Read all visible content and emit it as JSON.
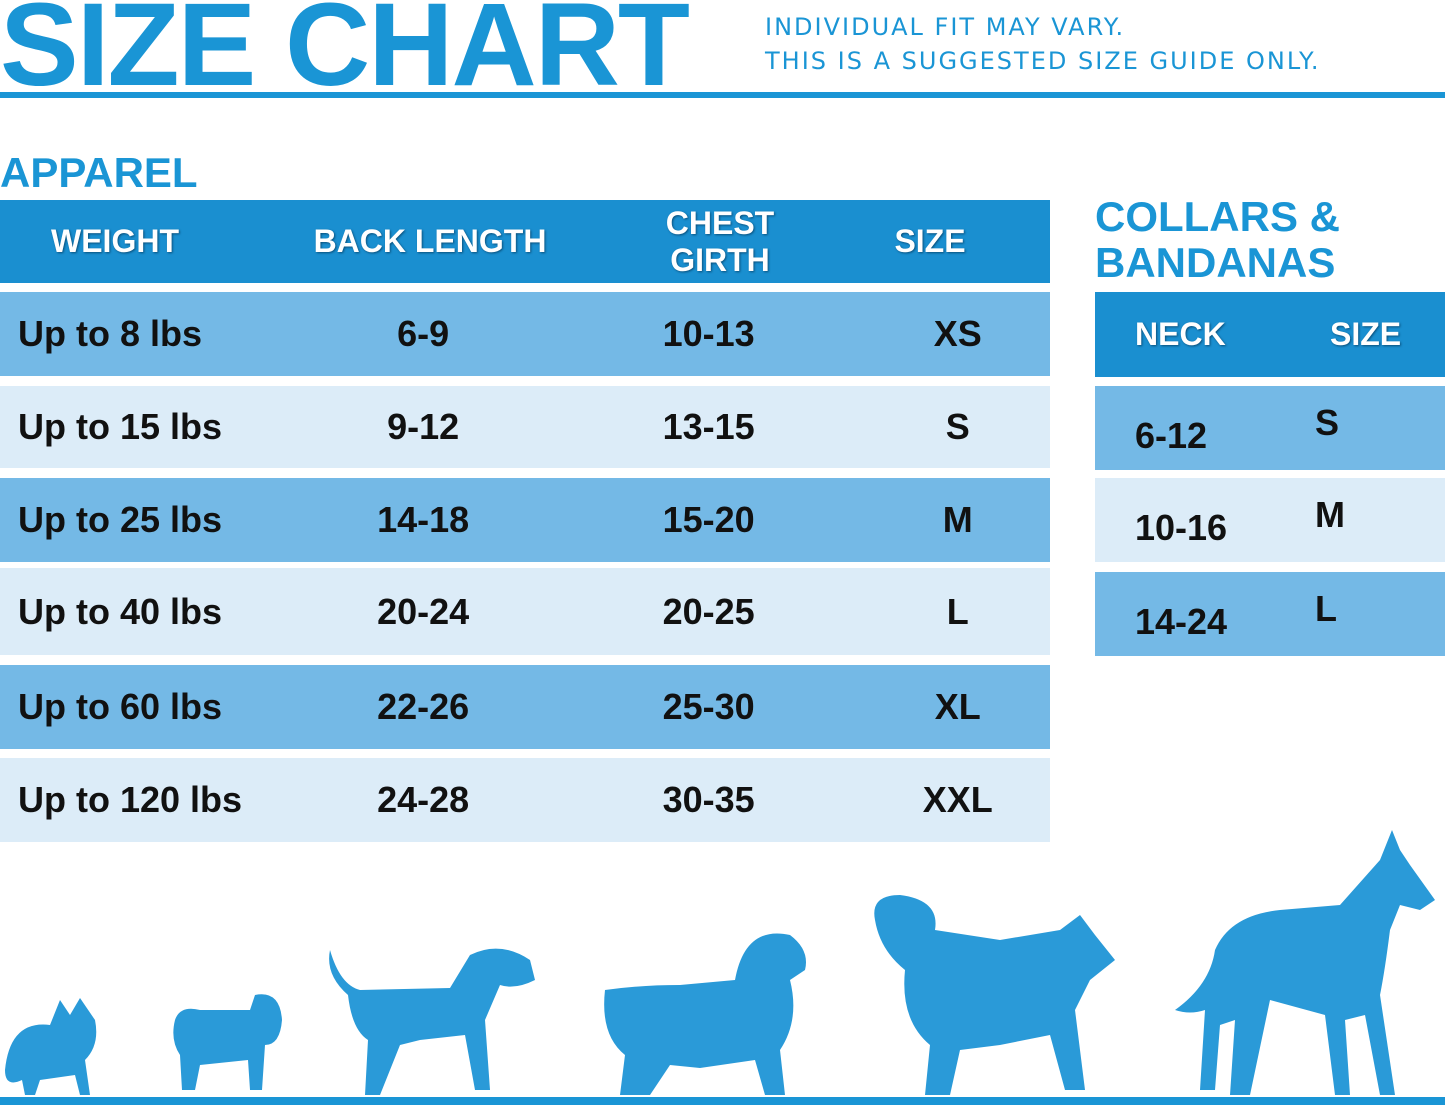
{
  "header": {
    "title": "SIZE CHART",
    "note_line1": "INDIVIDUAL FIT MAY VARY.",
    "note_line2": "THIS IS A SUGGESTED SIZE GUIDE ONLY."
  },
  "apparel": {
    "title": "APPAREL",
    "columns": [
      "WEIGHT",
      "BACK LENGTH",
      "CHEST GIRTH",
      "SIZE"
    ],
    "rows": [
      [
        "Up to 8 lbs",
        "6-9",
        "10-13",
        "XS"
      ],
      [
        "Up to 15 lbs",
        "9-12",
        "13-15",
        "S"
      ],
      [
        "Up to 25 lbs",
        "14-18",
        "15-20",
        "M"
      ],
      [
        "Up to 40 lbs",
        "20-24",
        "20-25",
        "L"
      ],
      [
        "Up to 60 lbs",
        "22-26",
        "25-30",
        "XL"
      ],
      [
        "Up to 120 lbs",
        "24-28",
        "30-35",
        "XXL"
      ]
    ]
  },
  "collars": {
    "title_line1": "COLLARS &",
    "title_line2": "BANDANAS",
    "columns": [
      "NECK",
      "SIZE"
    ],
    "rows": [
      [
        "6-12",
        "S"
      ],
      [
        "10-16",
        "M"
      ],
      [
        "14-24",
        "L"
      ]
    ]
  },
  "colors": {
    "accent": "#1a95d5",
    "header": "#1a8fd0",
    "row_dark": "#74b9e6",
    "row_light": "#dcecf8"
  },
  "icons": [
    "dog-silhouette-chihuahua",
    "dog-silhouette-pug",
    "dog-silhouette-beagle",
    "dog-silhouette-spaniel",
    "dog-silhouette-husky",
    "dog-silhouette-great-dane"
  ]
}
